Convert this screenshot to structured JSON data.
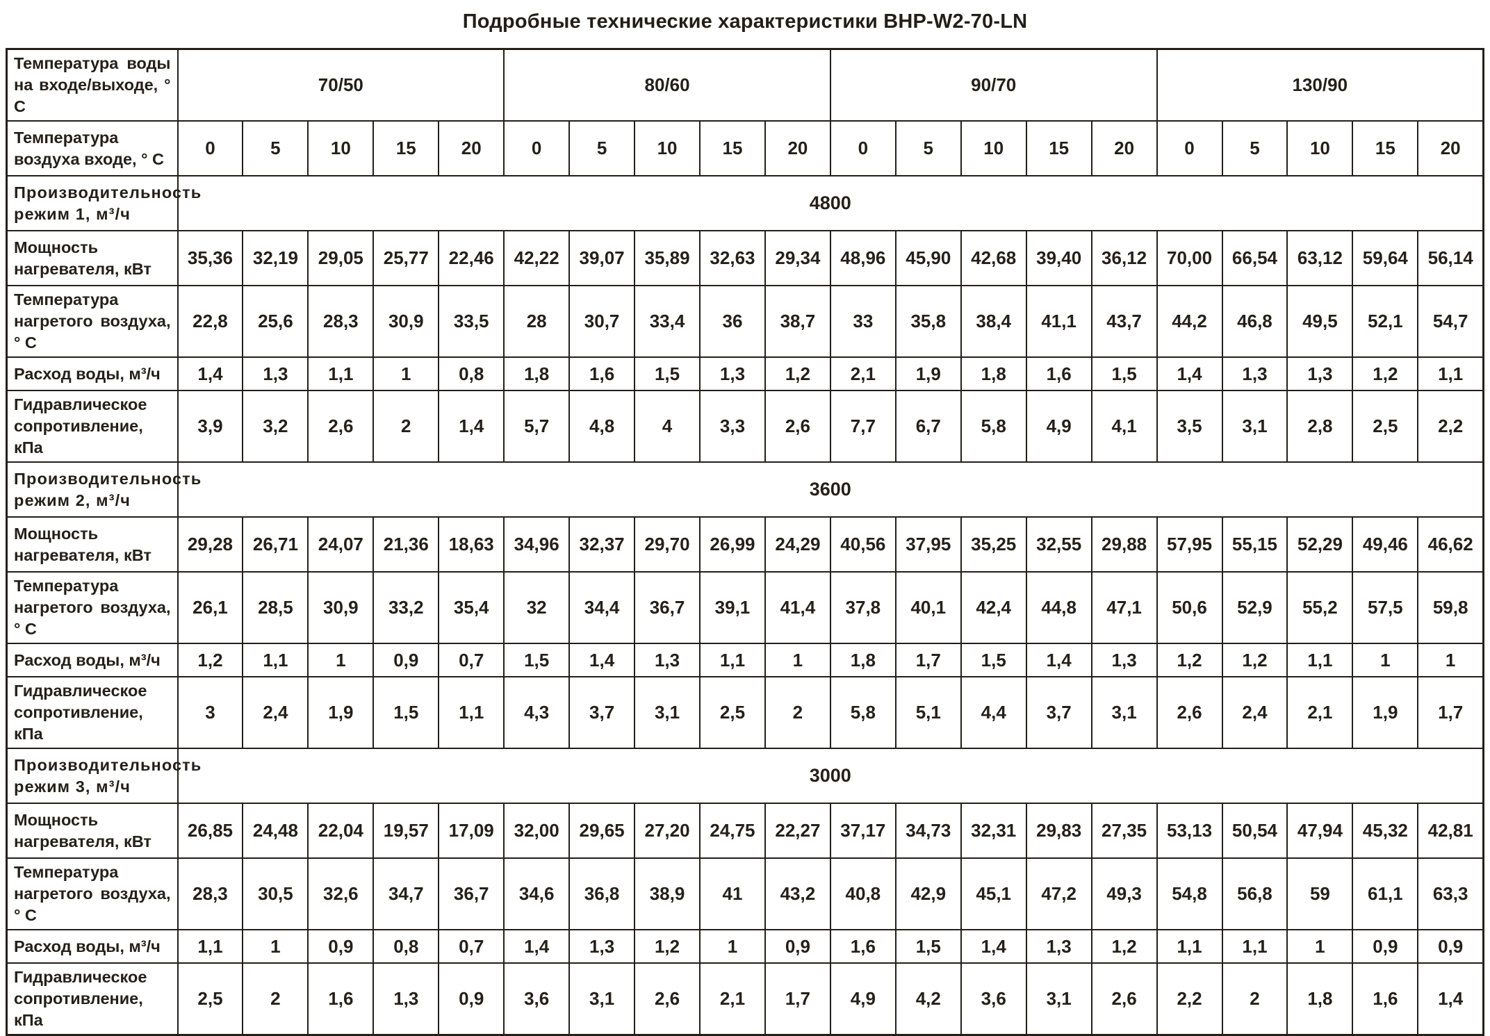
{
  "title": "Подробные технические характеристики BHP-W2-70-LN",
  "table": {
    "water_temp_header": {
      "label": "Температура воды на входе/выходе, ° С",
      "groups": [
        "70/50",
        "80/60",
        "90/70",
        "130/90"
      ]
    },
    "air_temp_header": {
      "label": "Температура воздуха входе, ° С",
      "cols": [
        "0",
        "5",
        "10",
        "15",
        "20"
      ]
    },
    "row_label_power": "Мощность нагревателя, кВт",
    "row_label_air_out": "Температура нагретого воздуха, ° С",
    "row_label_flow": "Расход воды, м³/ч",
    "row_label_hydraulic": "Гидравлическое сопро­тивление, кПа",
    "modes": [
      {
        "capacity_label": "Производительность режим 1, м³/ч",
        "capacity_value": "4800",
        "power": [
          "35,36",
          "32,19",
          "29,05",
          "25,77",
          "22,46",
          "42,22",
          "39,07",
          "35,89",
          "32,63",
          "29,34",
          "48,96",
          "45,90",
          "42,68",
          "39,40",
          "36,12",
          "70,00",
          "66,54",
          "63,12",
          "59,64",
          "56,14"
        ],
        "air_out": [
          "22,8",
          "25,6",
          "28,3",
          "30,9",
          "33,5",
          "28",
          "30,7",
          "33,4",
          "36",
          "38,7",
          "33",
          "35,8",
          "38,4",
          "41,1",
          "43,7",
          "44,2",
          "46,8",
          "49,5",
          "52,1",
          "54,7"
        ],
        "flow": [
          "1,4",
          "1,3",
          "1,1",
          "1",
          "0,8",
          "1,8",
          "1,6",
          "1,5",
          "1,3",
          "1,2",
          "2,1",
          "1,9",
          "1,8",
          "1,6",
          "1,5",
          "1,4",
          "1,3",
          "1,3",
          "1,2",
          "1,1"
        ],
        "hydraulic": [
          "3,9",
          "3,2",
          "2,6",
          "2",
          "1,4",
          "5,7",
          "4,8",
          "4",
          "3,3",
          "2,6",
          "7,7",
          "6,7",
          "5,8",
          "4,9",
          "4,1",
          "3,5",
          "3,1",
          "2,8",
          "2,5",
          "2,2"
        ]
      },
      {
        "capacity_label": "Производительность режим 2, м³/ч",
        "capacity_value": "3600",
        "power": [
          "29,28",
          "26,71",
          "24,07",
          "21,36",
          "18,63",
          "34,96",
          "32,37",
          "29,70",
          "26,99",
          "24,29",
          "40,56",
          "37,95",
          "35,25",
          "32,55",
          "29,88",
          "57,95",
          "55,15",
          "52,29",
          "49,46",
          "46,62"
        ],
        "air_out": [
          "26,1",
          "28,5",
          "30,9",
          "33,2",
          "35,4",
          "32",
          "34,4",
          "36,7",
          "39,1",
          "41,4",
          "37,8",
          "40,1",
          "42,4",
          "44,8",
          "47,1",
          "50,6",
          "52,9",
          "55,2",
          "57,5",
          "59,8"
        ],
        "flow": [
          "1,2",
          "1,1",
          "1",
          "0,9",
          "0,7",
          "1,5",
          "1,4",
          "1,3",
          "1,1",
          "1",
          "1,8",
          "1,7",
          "1,5",
          "1,4",
          "1,3",
          "1,2",
          "1,2",
          "1,1",
          "1",
          "1"
        ],
        "hydraulic": [
          "3",
          "2,4",
          "1,9",
          "1,5",
          "1,1",
          "4,3",
          "3,7",
          "3,1",
          "2,5",
          "2",
          "5,8",
          "5,1",
          "4,4",
          "3,7",
          "3,1",
          "2,6",
          "2,4",
          "2,1",
          "1,9",
          "1,7"
        ]
      },
      {
        "capacity_label": "Производительность режим 3, м³/ч",
        "capacity_value": "3000",
        "power": [
          "26,85",
          "24,48",
          "22,04",
          "19,57",
          "17,09",
          "32,00",
          "29,65",
          "27,20",
          "24,75",
          "22,27",
          "37,17",
          "34,73",
          "32,31",
          "29,83",
          "27,35",
          "53,13",
          "50,54",
          "47,94",
          "45,32",
          "42,81"
        ],
        "air_out": [
          "28,3",
          "30,5",
          "32,6",
          "34,7",
          "36,7",
          "34,6",
          "36,8",
          "38,9",
          "41",
          "43,2",
          "40,8",
          "42,9",
          "45,1",
          "47,2",
          "49,3",
          "54,8",
          "56,8",
          "59",
          "61,1",
          "63,3"
        ],
        "flow": [
          "1,1",
          "1",
          "0,9",
          "0,8",
          "0,7",
          "1,4",
          "1,3",
          "1,2",
          "1",
          "0,9",
          "1,6",
          "1,5",
          "1,4",
          "1,3",
          "1,2",
          "1,1",
          "1,1",
          "1",
          "0,9",
          "0,9"
        ],
        "hydraulic": [
          "2,5",
          "2",
          "1,6",
          "1,3",
          "0,9",
          "3,6",
          "3,1",
          "2,6",
          "2,1",
          "1,7",
          "4,9",
          "4,2",
          "3,6",
          "3,1",
          "2,6",
          "2,2",
          "2",
          "1,8",
          "1,6",
          "1,4"
        ]
      }
    ]
  }
}
